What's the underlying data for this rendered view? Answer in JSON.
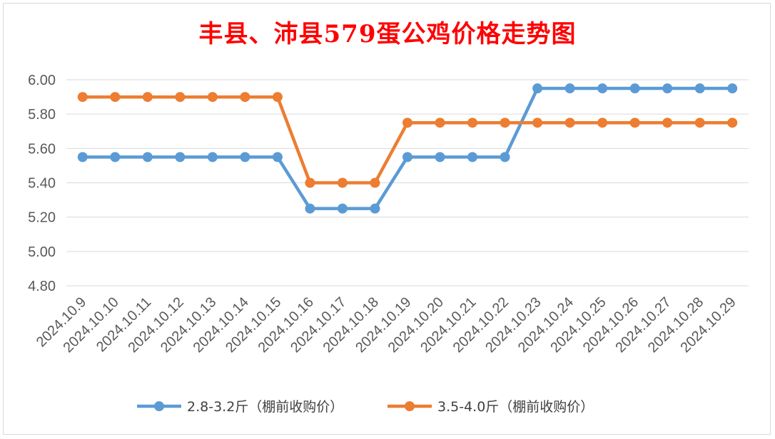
{
  "chart_data": {
    "type": "line",
    "title": "丰县、沛县579蛋公鸡价格走势图",
    "categories": [
      "2024.10.9",
      "2024.10.10",
      "2024.10.11",
      "2024.10.12",
      "2024.10.13",
      "2024.10.14",
      "2024.10.15",
      "2024.10.16",
      "2024.10.17",
      "2024.10.18",
      "2024.10.19",
      "2024.10.20",
      "2024.10.21",
      "2024.10.22",
      "2024.10.23",
      "2024.10.24",
      "2024.10.25",
      "2024.10.26",
      "2024.10.27",
      "2024.10.28",
      "2024.10.29"
    ],
    "series": [
      {
        "name": "2.8-3.2斤（棚前收购价）",
        "color": "#5b9bd5",
        "values": [
          5.55,
          5.55,
          5.55,
          5.55,
          5.55,
          5.55,
          5.55,
          5.25,
          5.25,
          5.25,
          5.55,
          5.55,
          5.55,
          5.55,
          5.95,
          5.95,
          5.95,
          5.95,
          5.95,
          5.95,
          5.95
        ]
      },
      {
        "name": "3.5-4.0斤（棚前收购价）",
        "color": "#ed7d31",
        "values": [
          5.9,
          5.9,
          5.9,
          5.9,
          5.9,
          5.9,
          5.9,
          5.4,
          5.4,
          5.4,
          5.75,
          5.75,
          5.75,
          5.75,
          5.75,
          5.75,
          5.75,
          5.75,
          5.75,
          5.75,
          5.75
        ]
      }
    ],
    "yticks": [
      "6.00",
      "5.80",
      "5.60",
      "5.40",
      "5.20",
      "5.00",
      "4.80"
    ],
    "ylim": [
      4.8,
      6.0
    ],
    "grid": true,
    "legend_position": "bottom",
    "xlabel": "",
    "ylabel": ""
  }
}
